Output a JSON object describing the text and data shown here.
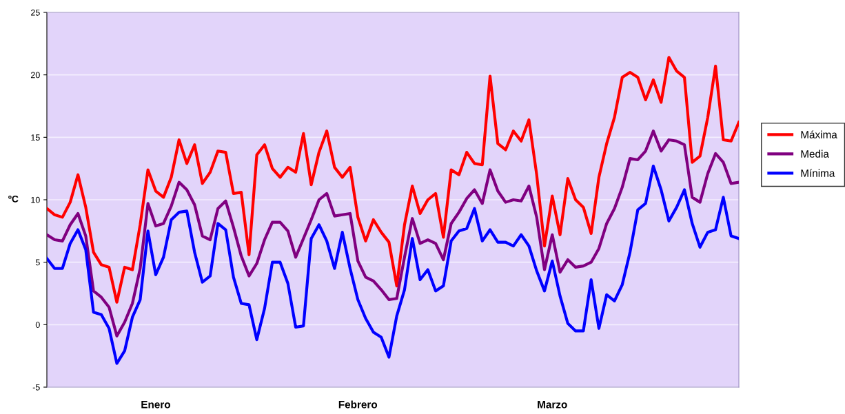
{
  "chart_data": {
    "type": "line",
    "ylabel": "ºC",
    "ylim": [
      -5,
      25
    ],
    "yticks": [
      -5,
      0,
      5,
      10,
      15,
      20,
      25
    ],
    "categories": [
      null,
      null,
      null,
      null,
      null,
      null,
      null,
      null,
      null,
      null,
      null,
      null,
      null,
      null,
      "Enero",
      null,
      null,
      null,
      null,
      null,
      null,
      null,
      null,
      null,
      null,
      null,
      null,
      null,
      null,
      null,
      null,
      null,
      null,
      null,
      null,
      null,
      null,
      null,
      null,
      null,
      "Febrero",
      null,
      null,
      null,
      null,
      null,
      null,
      null,
      null,
      null,
      null,
      null,
      null,
      null,
      null,
      null,
      null,
      null,
      null,
      null,
      null,
      null,
      null,
      null,
      null,
      "Marzo",
      null,
      null,
      null,
      null,
      null,
      null,
      null,
      null,
      null,
      null,
      null,
      null,
      null,
      null,
      null,
      null,
      null,
      null,
      null,
      null,
      null,
      null,
      null,
      null
    ],
    "grid": "y",
    "legend": "right",
    "series": [
      {
        "name": "Máxima",
        "color": "#ff0000",
        "values": [
          9.3,
          8.8,
          8.6,
          9.8,
          12.0,
          9.4,
          5.8,
          4.8,
          4.6,
          1.8,
          4.6,
          4.4,
          8.0,
          12.4,
          10.7,
          10.2,
          11.8,
          14.8,
          12.9,
          14.4,
          11.3,
          12.2,
          13.9,
          13.8,
          10.5,
          10.6,
          5.6,
          13.6,
          14.4,
          12.5,
          11.8,
          12.6,
          12.2,
          15.3,
          11.2,
          13.8,
          15.5,
          12.6,
          11.8,
          12.6,
          8.6,
          6.7,
          8.4,
          7.4,
          6.6,
          3.1,
          8.0,
          11.1,
          8.9,
          10.0,
          10.5,
          7.0,
          12.4,
          12.0,
          13.8,
          12.9,
          12.8,
          19.9,
          14.5,
          14.0,
          15.5,
          14.7,
          16.4,
          12.0,
          6.3,
          10.3,
          7.2,
          11.7,
          10.0,
          9.4,
          7.3,
          11.8,
          14.5,
          16.6,
          19.8,
          20.2,
          19.8,
          18.0,
          19.6,
          17.8,
          21.4,
          20.3,
          19.8,
          13.0,
          13.5,
          16.6,
          20.7,
          14.8,
          14.7,
          16.2
        ]
      },
      {
        "name": "Media",
        "color": "#800080",
        "values": [
          7.2,
          6.8,
          6.7,
          8.0,
          8.9,
          7.1,
          2.7,
          2.2,
          1.4,
          -0.9,
          0.2,
          1.7,
          4.5,
          9.7,
          7.9,
          8.1,
          9.5,
          11.4,
          10.8,
          9.6,
          7.1,
          6.8,
          9.3,
          9.9,
          7.8,
          5.5,
          3.9,
          4.9,
          6.8,
          8.2,
          8.2,
          7.5,
          5.4,
          6.9,
          8.4,
          10.0,
          10.5,
          8.7,
          8.8,
          8.9,
          5.1,
          3.8,
          3.5,
          2.8,
          2.0,
          2.1,
          5.4,
          8.5,
          6.5,
          6.8,
          6.5,
          5.2,
          8.1,
          9.0,
          10.1,
          10.8,
          9.7,
          12.4,
          10.7,
          9.8,
          10.0,
          9.9,
          11.1,
          8.6,
          4.4,
          7.2,
          4.2,
          5.2,
          4.6,
          4.7,
          5.0,
          6.1,
          8.1,
          9.3,
          11.0,
          13.3,
          13.2,
          13.9,
          15.5,
          13.9,
          14.8,
          14.7,
          14.4,
          10.2,
          9.8,
          12.1,
          13.7,
          13.0,
          11.3,
          11.4
        ]
      },
      {
        "name": "Mínima",
        "color": "#0000ff",
        "values": [
          5.3,
          4.5,
          4.5,
          6.5,
          7.6,
          6.0,
          1.0,
          0.8,
          -0.3,
          -3.1,
          -2.1,
          0.6,
          2.0,
          7.5,
          4.0,
          5.4,
          8.4,
          9.0,
          9.1,
          5.8,
          3.4,
          3.9,
          8.1,
          7.6,
          3.8,
          1.7,
          1.6,
          -1.2,
          1.3,
          5.0,
          5.0,
          3.3,
          -0.2,
          -0.1,
          6.9,
          8.0,
          6.7,
          4.5,
          7.4,
          4.5,
          2.0,
          0.5,
          -0.6,
          -1.0,
          -2.6,
          0.7,
          2.8,
          6.9,
          3.6,
          4.4,
          2.7,
          3.1,
          6.7,
          7.5,
          7.7,
          9.3,
          6.7,
          7.6,
          6.6,
          6.6,
          6.3,
          7.2,
          6.3,
          4.3,
          2.7,
          5.1,
          2.3,
          0.1,
          -0.5,
          -0.5,
          3.6,
          -0.3,
          2.4,
          1.9,
          3.2,
          5.8,
          9.2,
          9.7,
          12.7,
          10.8,
          8.3,
          9.4,
          10.8,
          8.1,
          6.2,
          7.4,
          7.6,
          10.2,
          7.1,
          6.9
        ]
      }
    ]
  }
}
